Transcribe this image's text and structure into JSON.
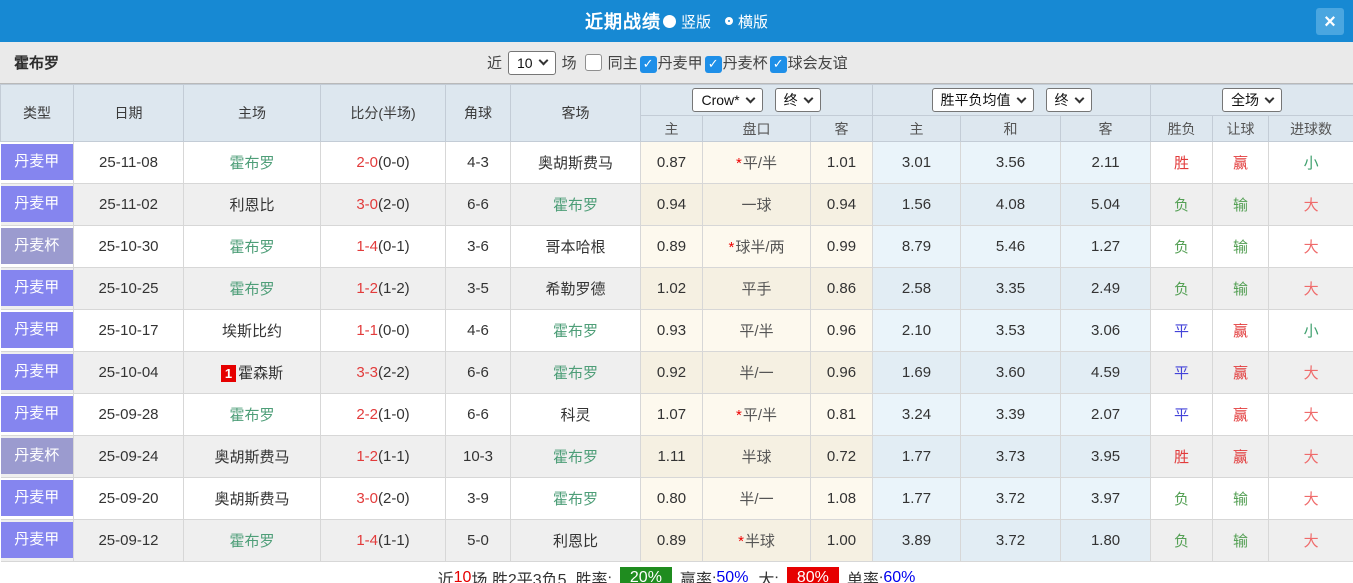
{
  "topbar": {
    "title": "近期战绩",
    "vertical_label": "竖版",
    "horizontal_label": "横版",
    "vertical_selected": true,
    "close_label": "×"
  },
  "filterbar": {
    "team_name": "霍布罗",
    "near_label": "近",
    "match_count": "10",
    "games_label": "场",
    "same_home": {
      "label": "同主",
      "checked": false
    },
    "leagues": [
      {
        "label": "丹麦甲",
        "checked": true
      },
      {
        "label": "丹麦杯",
        "checked": true
      },
      {
        "label": "球会友谊",
        "checked": true
      }
    ],
    "check_icon": "✓"
  },
  "table": {
    "static_columns": [
      "类型",
      "日期",
      "主场",
      "比分(半场)",
      "角球",
      "客场"
    ],
    "odds_group": {
      "company_select": "Crow*",
      "time_select": "终",
      "subcols": [
        "主",
        "盘口",
        "客"
      ]
    },
    "avg_group": {
      "name_select": "胜平负均值",
      "time_select": "终",
      "subcols": [
        "主",
        "和",
        "客"
      ]
    },
    "result_group": {
      "scope_select": "全场",
      "subcols": [
        "胜负",
        "让球",
        "进球数"
      ]
    },
    "rows": [
      {
        "league": "丹麦甲",
        "cup": false,
        "date": "25-11-08",
        "home": "霍布罗",
        "home_self": true,
        "home_badge": "",
        "ft": "2-0",
        "ht": "(0-0)",
        "corner": "4-3",
        "away": "奥胡斯费马",
        "away_self": false,
        "o_home": "0.87",
        "hcap": "平/半",
        "star": true,
        "o_away": "1.01",
        "a_home": "3.01",
        "a_draw": "3.56",
        "a_away": "2.11",
        "res": "胜",
        "res_k": "win",
        "let": "赢",
        "let_k": "win",
        "goal": "小",
        "goal_k": "small"
      },
      {
        "league": "丹麦甲",
        "cup": false,
        "date": "25-11-02",
        "home": "利恩比",
        "home_self": false,
        "home_badge": "",
        "ft": "3-0",
        "ht": "(2-0)",
        "corner": "6-6",
        "away": "霍布罗",
        "away_self": true,
        "o_home": "0.94",
        "hcap": "一球",
        "star": false,
        "o_away": "0.94",
        "a_home": "1.56",
        "a_draw": "4.08",
        "a_away": "5.04",
        "res": "负",
        "res_k": "lose",
        "let": "输",
        "let_k": "lose",
        "goal": "大",
        "goal_k": "big"
      },
      {
        "league": "丹麦杯",
        "cup": true,
        "date": "25-10-30",
        "home": "霍布罗",
        "home_self": true,
        "home_badge": "",
        "ft": "1-4",
        "ht": "(0-1)",
        "corner": "3-6",
        "away": "哥本哈根",
        "away_self": false,
        "o_home": "0.89",
        "hcap": "球半/两",
        "star": true,
        "o_away": "0.99",
        "a_home": "8.79",
        "a_draw": "5.46",
        "a_away": "1.27",
        "res": "负",
        "res_k": "lose",
        "let": "输",
        "let_k": "lose",
        "goal": "大",
        "goal_k": "big"
      },
      {
        "league": "丹麦甲",
        "cup": false,
        "date": "25-10-25",
        "home": "霍布罗",
        "home_self": true,
        "home_badge": "",
        "ft": "1-2",
        "ht": "(1-2)",
        "corner": "3-5",
        "away": "希勒罗德",
        "away_self": false,
        "o_home": "1.02",
        "hcap": "平手",
        "star": false,
        "o_away": "0.86",
        "a_home": "2.58",
        "a_draw": "3.35",
        "a_away": "2.49",
        "res": "负",
        "res_k": "lose",
        "let": "输",
        "let_k": "lose",
        "goal": "大",
        "goal_k": "big"
      },
      {
        "league": "丹麦甲",
        "cup": false,
        "date": "25-10-17",
        "home": "埃斯比约",
        "home_self": false,
        "home_badge": "",
        "ft": "1-1",
        "ht": "(0-0)",
        "corner": "4-6",
        "away": "霍布罗",
        "away_self": true,
        "o_home": "0.93",
        "hcap": "平/半",
        "star": false,
        "o_away": "0.96",
        "a_home": "2.10",
        "a_draw": "3.53",
        "a_away": "3.06",
        "res": "平",
        "res_k": "draw",
        "let": "赢",
        "let_k": "win",
        "goal": "小",
        "goal_k": "small"
      },
      {
        "league": "丹麦甲",
        "cup": false,
        "date": "25-10-04",
        "home": "霍森斯",
        "home_self": false,
        "home_badge": "1",
        "ft": "3-3",
        "ht": "(2-2)",
        "corner": "6-6",
        "away": "霍布罗",
        "away_self": true,
        "o_home": "0.92",
        "hcap": "半/一",
        "star": false,
        "o_away": "0.96",
        "a_home": "1.69",
        "a_draw": "3.60",
        "a_away": "4.59",
        "res": "平",
        "res_k": "draw",
        "let": "赢",
        "let_k": "win",
        "goal": "大",
        "goal_k": "big"
      },
      {
        "league": "丹麦甲",
        "cup": false,
        "date": "25-09-28",
        "home": "霍布罗",
        "home_self": true,
        "home_badge": "",
        "ft": "2-2",
        "ht": "(1-0)",
        "corner": "6-6",
        "away": "科灵",
        "away_self": false,
        "o_home": "1.07",
        "hcap": "平/半",
        "star": true,
        "o_away": "0.81",
        "a_home": "3.24",
        "a_draw": "3.39",
        "a_away": "2.07",
        "res": "平",
        "res_k": "draw",
        "let": "赢",
        "let_k": "win",
        "goal": "大",
        "goal_k": "big"
      },
      {
        "league": "丹麦杯",
        "cup": true,
        "date": "25-09-24",
        "home": "奥胡斯费马",
        "home_self": false,
        "home_badge": "",
        "ft": "1-2",
        "ht": "(1-1)",
        "corner": "10-3",
        "away": "霍布罗",
        "away_self": true,
        "o_home": "1.11",
        "hcap": "半球",
        "star": false,
        "o_away": "0.72",
        "a_home": "1.77",
        "a_draw": "3.73",
        "a_away": "3.95",
        "res": "胜",
        "res_k": "win",
        "let": "赢",
        "let_k": "win",
        "goal": "大",
        "goal_k": "big"
      },
      {
        "league": "丹麦甲",
        "cup": false,
        "date": "25-09-20",
        "home": "奥胡斯费马",
        "home_self": false,
        "home_badge": "",
        "ft": "3-0",
        "ht": "(2-0)",
        "corner": "3-9",
        "away": "霍布罗",
        "away_self": true,
        "o_home": "0.80",
        "hcap": "半/一",
        "star": false,
        "o_away": "1.08",
        "a_home": "1.77",
        "a_draw": "3.72",
        "a_away": "3.97",
        "res": "负",
        "res_k": "lose",
        "let": "输",
        "let_k": "lose",
        "goal": "大",
        "goal_k": "big"
      },
      {
        "league": "丹麦甲",
        "cup": false,
        "date": "25-09-12",
        "home": "霍布罗",
        "home_self": true,
        "home_badge": "",
        "ft": "1-4",
        "ht": "(1-1)",
        "corner": "5-0",
        "away": "利恩比",
        "away_self": false,
        "o_home": "0.89",
        "hcap": "半球",
        "star": true,
        "o_away": "1.00",
        "a_home": "3.89",
        "a_draw": "3.72",
        "a_away": "1.80",
        "res": "负",
        "res_k": "lose",
        "let": "输",
        "let_k": "lose",
        "goal": "大",
        "goal_k": "big"
      }
    ]
  },
  "summary": {
    "prefix": "近",
    "count": "10",
    "mid": "场,胜2平3负5, 胜率:",
    "win_rate": "20%",
    "odds_win_label": "赢率:",
    "odds_win_rate": "50%",
    "big_label": "大:",
    "big_rate": "80%",
    "single_label": "单率:",
    "single_rate": "60%"
  },
  "colors": {
    "accent_blue": "#1789d3",
    "league_jia": "#8585ef",
    "league_cup": "#9b9bcf",
    "self_team_green": "#4e9e78",
    "score_red": "#e23b3b",
    "win_red": "#e23b3b",
    "draw_blue": "#4343d9",
    "lose_green": "#55a055",
    "big_red": "#ef6b6b",
    "small_green": "#3fa06e",
    "win_badge_green": "#1f8c1f",
    "big_badge_red": "#e60000",
    "rate_blue": "#0000ee"
  }
}
